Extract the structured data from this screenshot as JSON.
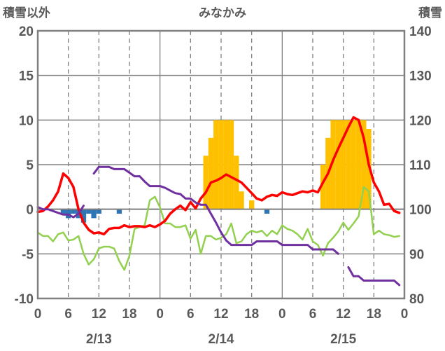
{
  "chart_data": {
    "type": "line",
    "title": "みなかみ",
    "ylabel_left": "積雪以外",
    "ylabel_right": "積雪",
    "ylim_left": [
      -10,
      20
    ],
    "ylim_right": [
      80,
      140
    ],
    "yticks_left": [
      -10,
      -5,
      0,
      5,
      10,
      15,
      20
    ],
    "yticks_right": [
      80,
      90,
      100,
      110,
      120,
      130,
      140
    ],
    "xlim_hours": [
      0,
      72
    ],
    "xtick_labels": [
      "0",
      "6",
      "12",
      "18",
      "0",
      "6",
      "12",
      "18",
      "0",
      "6",
      "12",
      "18",
      "0"
    ],
    "date_labels": [
      "2/13",
      "2/14",
      "2/15"
    ],
    "grid": true,
    "colors": {
      "red": "#ff0000",
      "green": "#92d050",
      "purple": "#7030a0",
      "yellow": "#ffc000",
      "blue": "#2e75b6",
      "axis": "#808080",
      "grid": "#808080"
    },
    "bars_yellow": [
      [
        33,
        6
      ],
      [
        34,
        8
      ],
      [
        35,
        10
      ],
      [
        36,
        10
      ],
      [
        37,
        10
      ],
      [
        38,
        10
      ],
      [
        39,
        6
      ],
      [
        40,
        2
      ],
      [
        42,
        1
      ],
      [
        56,
        5
      ],
      [
        57,
        8
      ],
      [
        58,
        10
      ],
      [
        59,
        10
      ],
      [
        60,
        10
      ],
      [
        61,
        10
      ],
      [
        62,
        10
      ],
      [
        63,
        10
      ],
      [
        64,
        10
      ],
      [
        65,
        9
      ]
    ],
    "bars_blue": [
      [
        5,
        -0.5
      ],
      [
        6,
        -1
      ],
      [
        7,
        -0.5
      ],
      [
        8,
        -1
      ],
      [
        9,
        -1.5
      ],
      [
        10,
        -0.5
      ],
      [
        11,
        -1
      ],
      [
        12,
        -0.5
      ],
      [
        16,
        -0.5
      ],
      [
        45,
        -0.5
      ]
    ],
    "series": [
      {
        "color": "red",
        "axis": "left",
        "points": [
          [
            0,
            -0.3
          ],
          [
            1,
            -0.2
          ],
          [
            2,
            0.3
          ],
          [
            3,
            1
          ],
          [
            4,
            2
          ],
          [
            5,
            4
          ],
          [
            6,
            3.5
          ],
          [
            7,
            2.5
          ],
          [
            8,
            0
          ],
          [
            9,
            -1.5
          ],
          [
            10,
            -2.3
          ],
          [
            11,
            -2.7
          ],
          [
            12,
            -2.6
          ],
          [
            13,
            -2.8
          ],
          [
            14,
            -2.2
          ],
          [
            15,
            -2.1
          ],
          [
            16,
            -2.1
          ],
          [
            17,
            -1.8
          ],
          [
            18,
            -2
          ],
          [
            19,
            -1.9
          ],
          [
            20,
            -1.9
          ],
          [
            21,
            -2
          ],
          [
            22,
            -1.8
          ],
          [
            23,
            -2
          ],
          [
            24,
            -1.7
          ],
          [
            25,
            -1.3
          ],
          [
            26,
            -0.5
          ],
          [
            27,
            0
          ],
          [
            28,
            0.4
          ],
          [
            29,
            -0.1
          ],
          [
            30,
            0.8
          ],
          [
            31,
            0.1
          ],
          [
            32,
            1.2
          ],
          [
            33,
            1.9
          ],
          [
            34,
            3
          ],
          [
            35,
            3.2
          ],
          [
            36,
            3.5
          ],
          [
            37,
            3.9
          ],
          [
            38,
            3.6
          ],
          [
            39,
            3.3
          ],
          [
            40,
            3
          ],
          [
            41,
            2.4
          ],
          [
            42,
            1.8
          ],
          [
            43,
            1.2
          ],
          [
            44,
            1
          ],
          [
            45,
            1.4
          ],
          [
            46,
            1.6
          ],
          [
            47,
            1.5
          ],
          [
            48,
            1.9
          ],
          [
            49,
            1.7
          ],
          [
            50,
            1.6
          ],
          [
            51,
            1.8
          ],
          [
            52,
            2
          ],
          [
            53,
            1.9
          ],
          [
            54,
            2.1
          ],
          [
            55,
            1.9
          ],
          [
            56,
            3
          ],
          [
            57,
            4
          ],
          [
            58,
            5.5
          ],
          [
            59,
            6.8
          ],
          [
            60,
            8
          ],
          [
            61,
            9.2
          ],
          [
            62,
            10.3
          ],
          [
            63,
            10
          ],
          [
            64,
            8
          ],
          [
            65,
            5
          ],
          [
            66,
            3
          ],
          [
            67,
            2
          ],
          [
            68,
            0.5
          ],
          [
            69,
            0.6
          ],
          [
            70,
            -0.2
          ],
          [
            71,
            -0.4
          ]
        ]
      },
      {
        "color": "green",
        "axis": "left",
        "points": [
          [
            0,
            -2.6
          ],
          [
            1,
            -3
          ],
          [
            2,
            -3
          ],
          [
            3,
            -3.6
          ],
          [
            4,
            -2.8
          ],
          [
            5,
            -2.6
          ],
          [
            6,
            -3.5
          ],
          [
            7,
            -3.4
          ],
          [
            8,
            -3
          ],
          [
            9,
            -5
          ],
          [
            10,
            -6.2
          ],
          [
            11,
            -5.6
          ],
          [
            12,
            -4.4
          ],
          [
            13,
            -4.2
          ],
          [
            14,
            -4.2
          ],
          [
            15,
            -4.4
          ],
          [
            16,
            -5.8
          ],
          [
            17,
            -6.8
          ],
          [
            18,
            -5.2
          ],
          [
            19,
            -2.2
          ],
          [
            20,
            -2
          ],
          [
            21,
            -1.8
          ],
          [
            22,
            1
          ],
          [
            23,
            1.4
          ],
          [
            24,
            0.2
          ],
          [
            25,
            -1.6
          ],
          [
            26,
            -1.6
          ],
          [
            27,
            -2
          ],
          [
            28,
            -2
          ],
          [
            29,
            -1.8
          ],
          [
            30,
            -3.3
          ],
          [
            31,
            -2.3
          ],
          [
            32,
            -5
          ],
          [
            33,
            -3
          ],
          [
            34,
            -3
          ],
          [
            35,
            -3.4
          ],
          [
            36,
            -3.2
          ],
          [
            37,
            -2.8
          ],
          [
            38,
            -1.6
          ],
          [
            39,
            -3.8
          ],
          [
            40,
            -3.6
          ],
          [
            41,
            -2.8
          ],
          [
            42,
            -2.4
          ],
          [
            43,
            -2.6
          ],
          [
            44,
            -2.4
          ],
          [
            45,
            -3
          ],
          [
            46,
            -2.4
          ],
          [
            47,
            -2.8
          ],
          [
            48,
            -1.8
          ],
          [
            49,
            -2.2
          ],
          [
            50,
            -2.4
          ],
          [
            51,
            -2.8
          ],
          [
            52,
            -3.4
          ],
          [
            53,
            -2.2
          ],
          [
            54,
            -3.6
          ],
          [
            55,
            -4
          ],
          [
            56,
            -5.2
          ],
          [
            57,
            -3.8
          ],
          [
            58,
            -3.2
          ],
          [
            59,
            -2.5
          ],
          [
            60,
            -1.5
          ],
          [
            61,
            -2.3
          ],
          [
            62,
            -1.6
          ],
          [
            63,
            -0.8
          ],
          [
            64,
            2.5
          ],
          [
            65,
            2
          ],
          [
            66,
            -2.8
          ],
          [
            67,
            -2.4
          ],
          [
            68,
            -2.8
          ],
          [
            69,
            -2.9
          ],
          [
            70,
            -3.1
          ],
          [
            71,
            -3
          ]
        ]
      },
      {
        "color": "purple",
        "axis": "right",
        "segments": [
          [
            [
              0,
              100.5
            ],
            [
              1,
              100
            ],
            [
              2,
              100
            ],
            [
              3,
              99.6
            ],
            [
              4,
              99.2
            ],
            [
              5,
              98.8
            ],
            [
              6,
              98.8
            ],
            [
              7,
              98.2
            ],
            [
              8,
              99
            ],
            [
              9,
              100.8
            ]
          ],
          [
            [
              11,
              108
            ],
            [
              12,
              109.5
            ],
            [
              13,
              109.5
            ],
            [
              14,
              109.5
            ],
            [
              15,
              109
            ],
            [
              16,
              109
            ],
            [
              17,
              109
            ],
            [
              18,
              108.2
            ],
            [
              19,
              107.4
            ],
            [
              20,
              107.4
            ],
            [
              21,
              106.2
            ],
            [
              22,
              105.2
            ],
            [
              23,
              105.2
            ],
            [
              24,
              105.2
            ],
            [
              25,
              104.8
            ],
            [
              26,
              104.2
            ],
            [
              27,
              103.6
            ],
            [
              28,
              103.4
            ],
            [
              29,
              102.4
            ],
            [
              30,
              102.4
            ],
            [
              31,
              101.5
            ],
            [
              32,
              101
            ],
            [
              33,
              101
            ],
            [
              34,
              99
            ],
            [
              35,
              97
            ],
            [
              36,
              94.8
            ],
            [
              37,
              93
            ],
            [
              38,
              92
            ],
            [
              39,
              92
            ],
            [
              40,
              92
            ],
            [
              41,
              92
            ],
            [
              42,
              92
            ],
            [
              43,
              92.8
            ],
            [
              44,
              92.8
            ],
            [
              45,
              92.8
            ],
            [
              46,
              92.8
            ],
            [
              47,
              92.8
            ],
            [
              48,
              92
            ],
            [
              49,
              92
            ],
            [
              50,
              92
            ],
            [
              51,
              92
            ],
            [
              52,
              92
            ],
            [
              53,
              92
            ],
            [
              54,
              91
            ],
            [
              55,
              91
            ],
            [
              56,
              91
            ],
            [
              57,
              91
            ],
            [
              58,
              91
            ],
            [
              59,
              90
            ]
          ],
          [
            [
              61,
              87
            ],
            [
              62,
              85
            ],
            [
              63,
              85
            ],
            [
              64,
              84
            ],
            [
              65,
              84
            ],
            [
              66,
              84
            ],
            [
              67,
              84
            ],
            [
              68,
              84
            ],
            [
              69,
              84
            ],
            [
              70,
              84
            ],
            [
              71,
              83
            ]
          ]
        ]
      }
    ]
  }
}
